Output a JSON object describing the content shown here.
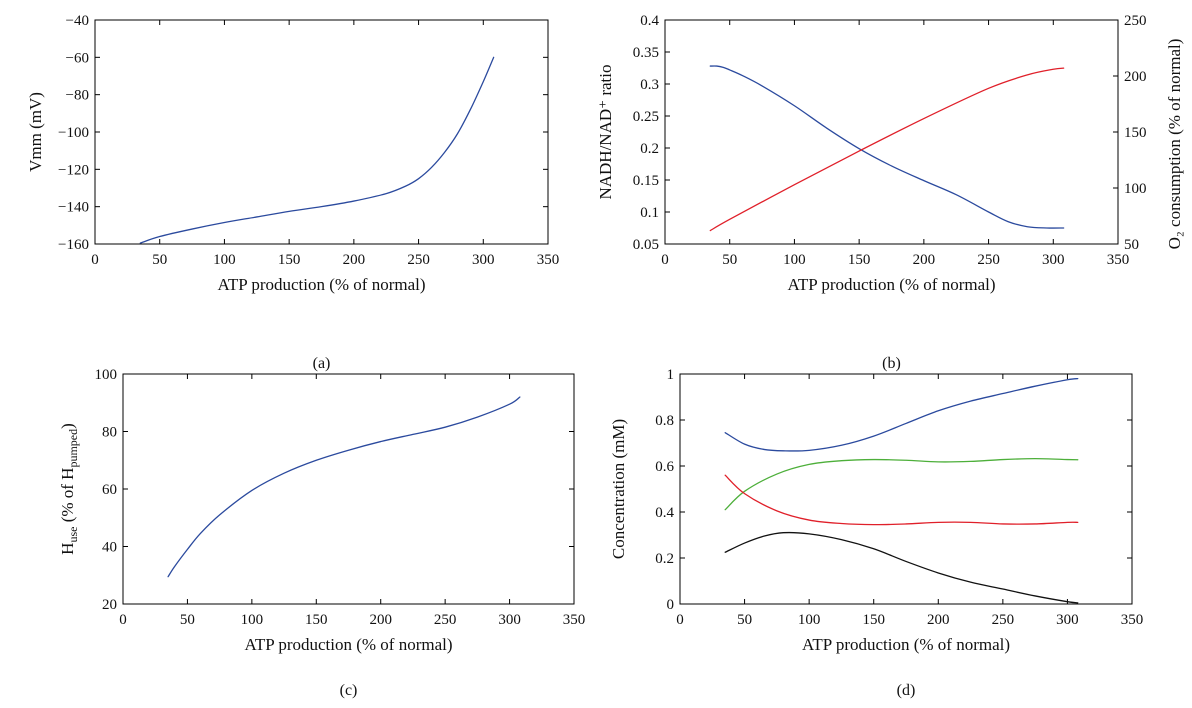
{
  "chart_data": [
    {
      "id": "a",
      "type": "line",
      "panel_label": "(a)",
      "xlabel": "ATP production (% of normal)",
      "ylabel": "Vmm (mV)",
      "xlim": [
        0,
        350
      ],
      "ylim": [
        -160,
        -40
      ],
      "xticks": [
        0,
        50,
        100,
        150,
        200,
        250,
        300,
        350
      ],
      "yticks": [
        -160,
        -140,
        -120,
        -100,
        -80,
        -60,
        -40
      ],
      "series": [
        {
          "color": "#2b4a9e",
          "x": [
            35,
            50,
            75,
            100,
            125,
            150,
            175,
            200,
            225,
            240,
            250,
            260,
            270,
            280,
            290,
            300,
            308
          ],
          "y": [
            -159.5,
            -156,
            -152,
            -148.5,
            -145.5,
            -142.5,
            -140,
            -137,
            -133,
            -129,
            -125,
            -119,
            -111,
            -101,
            -88,
            -73,
            -60
          ]
        }
      ]
    },
    {
      "id": "b",
      "type": "line",
      "panel_label": "(b)",
      "xlabel": "ATP production (% of normal)",
      "ylabel": "NADH/NAD⁺ ratio",
      "ylabel_right": "O₂ consumption (% of normal)",
      "xlim": [
        0,
        350
      ],
      "ylim": [
        0.05,
        0.4
      ],
      "ylim_right": [
        50,
        250
      ],
      "xticks": [
        0,
        50,
        100,
        150,
        200,
        250,
        300,
        350
      ],
      "yticks": [
        0.05,
        0.1,
        0.15,
        0.2,
        0.25,
        0.3,
        0.35,
        0.4
      ],
      "yticks_right": [
        50,
        100,
        150,
        200,
        250
      ],
      "series": [
        {
          "color": "#2b4a9e",
          "axis": "left",
          "x": [
            35,
            40,
            45,
            50,
            60,
            75,
            100,
            125,
            150,
            175,
            200,
            225,
            250,
            265,
            280,
            295,
            308
          ],
          "y": [
            0.328,
            0.328,
            0.326,
            0.322,
            0.313,
            0.297,
            0.266,
            0.231,
            0.199,
            0.172,
            0.149,
            0.127,
            0.1,
            0.085,
            0.077,
            0.075,
            0.075
          ]
        },
        {
          "color": "#e0202a",
          "axis": "right",
          "x": [
            35,
            50,
            100,
            150,
            200,
            250,
            280,
            300,
            308
          ],
          "y": [
            62,
            72,
            103,
            133,
            162,
            189,
            201,
            206,
            207
          ]
        }
      ]
    },
    {
      "id": "c",
      "type": "line",
      "panel_label": "(c)",
      "xlabel": "ATP production (% of normal)",
      "ylabel": "H_use (% of H_pumped)",
      "ylabel_main": "H",
      "ylabel_sub1": "use",
      "ylabel_mid": " (% of H",
      "ylabel_sub2": "pumped",
      "ylabel_end": ")",
      "xlim": [
        0,
        350
      ],
      "ylim": [
        20,
        100
      ],
      "xticks": [
        0,
        50,
        100,
        150,
        200,
        250,
        300,
        350
      ],
      "yticks": [
        20,
        40,
        60,
        80,
        100
      ],
      "series": [
        {
          "color": "#2b4a9e",
          "x": [
            35,
            40,
            50,
            60,
            75,
            100,
            125,
            150,
            175,
            200,
            225,
            250,
            275,
            300,
            308
          ],
          "y": [
            29.5,
            33,
            39,
            44.5,
            51,
            59.5,
            65.5,
            70,
            73.5,
            76.5,
            79,
            81.5,
            85,
            89.5,
            92
          ]
        }
      ]
    },
    {
      "id": "d",
      "type": "line",
      "panel_label": "(d)",
      "xlabel": "ATP production (% of normal)",
      "ylabel": "Concentration (mM)",
      "xlim": [
        0,
        350
      ],
      "ylim": [
        0,
        1
      ],
      "xticks": [
        0,
        50,
        100,
        150,
        200,
        250,
        300,
        350
      ],
      "yticks": [
        0,
        0.2,
        0.4,
        0.6,
        0.8,
        1
      ],
      "series": [
        {
          "color": "#2b4a9e",
          "x": [
            35,
            50,
            65,
            80,
            100,
            125,
            150,
            175,
            200,
            225,
            250,
            275,
            300,
            308
          ],
          "y": [
            0.745,
            0.695,
            0.672,
            0.666,
            0.668,
            0.69,
            0.73,
            0.785,
            0.84,
            0.882,
            0.915,
            0.947,
            0.975,
            0.98
          ]
        },
        {
          "color": "#4daf3a",
          "x": [
            35,
            50,
            75,
            100,
            125,
            150,
            175,
            200,
            225,
            250,
            275,
            300,
            308
          ],
          "y": [
            0.41,
            0.49,
            0.565,
            0.607,
            0.623,
            0.628,
            0.625,
            0.618,
            0.62,
            0.628,
            0.632,
            0.628,
            0.627
          ]
        },
        {
          "color": "#e0202a",
          "x": [
            35,
            50,
            75,
            100,
            125,
            150,
            175,
            200,
            225,
            250,
            275,
            300,
            308
          ],
          "y": [
            0.56,
            0.48,
            0.405,
            0.365,
            0.35,
            0.345,
            0.348,
            0.355,
            0.355,
            0.348,
            0.348,
            0.355,
            0.355
          ]
        },
        {
          "color": "#111111",
          "x": [
            35,
            50,
            65,
            80,
            100,
            125,
            150,
            175,
            200,
            225,
            250,
            275,
            300,
            308
          ],
          "y": [
            0.225,
            0.265,
            0.295,
            0.31,
            0.305,
            0.28,
            0.24,
            0.185,
            0.135,
            0.095,
            0.065,
            0.035,
            0.01,
            0.005
          ]
        }
      ]
    }
  ]
}
